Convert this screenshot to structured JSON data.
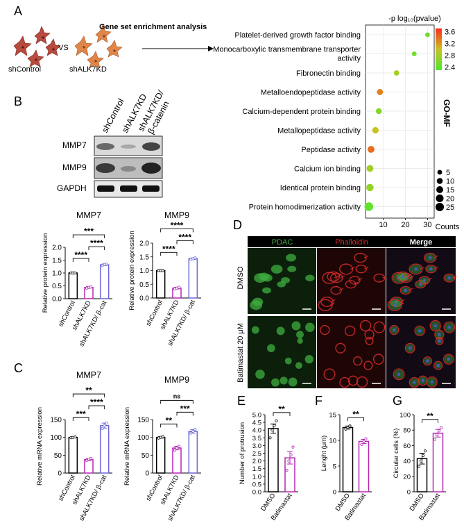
{
  "panels": {
    "a": "A",
    "b": "B",
    "c": "C",
    "d": "D",
    "e": "E",
    "f": "F",
    "g": "G"
  },
  "panel_a": {
    "left_label": "shControl",
    "vs": "VS",
    "right_label": "shALK7KD",
    "analysis_title": "Gene set enrichment analysis"
  },
  "western": {
    "lanes": [
      "shControl",
      "shALK7KD",
      "shALK7KD/",
      "β-catenin"
    ],
    "proteins": [
      "MMP7",
      "MMP9",
      "GAPDH"
    ]
  },
  "microscopy": {
    "channels": [
      "PDAC",
      "Phalloidin",
      "Merge"
    ],
    "rows": [
      "DMSO",
      "Batimastat 20 μM"
    ],
    "colors": {
      "pdac": "#3fae3f",
      "phalloidin": "#d22a2a",
      "pdac_bg": "#0b1f0b",
      "phalloidin_bg": "#1f0606",
      "merge_bg": "#120a14"
    }
  },
  "colors": {
    "control": "#000000",
    "alk7kd": "#b526b5",
    "rescue": "#6b67d8",
    "batimastat": "#b526b5"
  },
  "chart_data": [
    {
      "id": "go_mf",
      "type": "scatter",
      "title": "-p log₁₀(pvalue)",
      "side_label": "GO-MF",
      "xlabel": "Counts",
      "xticks": [
        10,
        20,
        30
      ],
      "xlim": [
        2,
        33
      ],
      "categories": [
        "Platelet-derived growth factor binding",
        "Monocarboxylic transmembrane transporter activity",
        "Fibronectin binding",
        "Metalloendopeptidase activity",
        "Calcium-dependent protein binding",
        "Metallopeptidase activity",
        "Peptidase activity",
        "Calcium ion binding",
        "Identical protein binding",
        "Protein homodimerization activity"
      ],
      "label_lines": [
        [
          "Platelet-derived growth factor binding"
        ],
        [
          "Monocarboxylic transmembrane transporter",
          "activity"
        ],
        [
          "Fibronectin binding"
        ],
        [
          "Metalloendopeptidase activity"
        ],
        [
          "Calcium-dependent protein binding"
        ],
        [
          "Metallopeptidase activity"
        ],
        [
          "Peptidase activity"
        ],
        [
          "Calcium ion binding"
        ],
        [
          "Identical protein binding"
        ],
        [
          "Protein homodimerization activity"
        ]
      ],
      "points": [
        {
          "count": 30,
          "pvalue": 2.5,
          "size": 4
        },
        {
          "count": 24,
          "pvalue": 2.5,
          "size": 4
        },
        {
          "count": 16,
          "pvalue": 2.8,
          "size": 6
        },
        {
          "count": 8.5,
          "pvalue": 3.3,
          "size": 9
        },
        {
          "count": 8,
          "pvalue": 2.6,
          "size": 8
        },
        {
          "count": 6.5,
          "pvalue": 3.0,
          "size": 10
        },
        {
          "count": 4.5,
          "pvalue": 3.4,
          "size": 12
        },
        {
          "count": 4,
          "pvalue": 2.8,
          "size": 12
        },
        {
          "count": 4,
          "pvalue": 2.7,
          "size": 14
        },
        {
          "count": 3.5,
          "pvalue": 2.4,
          "size": 22
        }
      ],
      "colorbar": {
        "min": 2.3,
        "max": 3.7,
        "ticks": [
          3.6,
          3.2,
          2.8,
          2.4
        ],
        "low_color": "#4de82f",
        "high_color": "#ff2b1a"
      },
      "size_legend": [
        5,
        10,
        15,
        20,
        25
      ]
    },
    {
      "id": "b_mmp7",
      "type": "bar",
      "title": "MMP7",
      "ylabel": "Relative protein expression",
      "categories": [
        "shControl",
        "shALK7KD",
        "shALK7KD/ β-cat"
      ],
      "values": [
        1.0,
        0.44,
        1.32
      ],
      "errors": [
        0.01,
        0.03,
        0.03
      ],
      "points": [
        [
          1.0,
          1.0,
          1.0
        ],
        [
          0.41,
          0.44,
          0.46
        ],
        [
          1.29,
          1.33,
          1.35
        ]
      ],
      "ylim": [
        0,
        2.0
      ],
      "yticks": [
        0.0,
        0.5,
        1.0,
        1.5,
        2.0
      ],
      "ytick_labels": [
        "0.0",
        "0.5",
        "1.0",
        "1.5",
        "2.0"
      ],
      "brackets": [
        {
          "from": 0,
          "to": 1,
          "label": "****"
        },
        {
          "from": 1,
          "to": 2,
          "label": "****"
        },
        {
          "from": 0,
          "to": 2,
          "label": "***"
        }
      ]
    },
    {
      "id": "b_mmp9",
      "type": "bar",
      "title": "MMP9",
      "ylabel": "Relative protein expression",
      "categories": [
        "shControl",
        "shALK7KD",
        "shALK7KD/ β-cat"
      ],
      "values": [
        1.0,
        0.36,
        1.43
      ],
      "errors": [
        0.01,
        0.03,
        0.03
      ],
      "points": [
        [
          1.0,
          1.0,
          1.0
        ],
        [
          0.33,
          0.36,
          0.39
        ],
        [
          1.41,
          1.43,
          1.46
        ]
      ],
      "ylim": [
        0,
        2.0
      ],
      "yticks": [
        0.0,
        0.5,
        1.0,
        1.5,
        2.0
      ],
      "ytick_labels": [
        "0.0",
        "0.5",
        "1.0",
        "1.5",
        "2.0"
      ],
      "brackets": [
        {
          "from": 0,
          "to": 1,
          "label": "****"
        },
        {
          "from": 1,
          "to": 2,
          "label": "****"
        },
        {
          "from": 0,
          "to": 2,
          "label": "****"
        }
      ]
    },
    {
      "id": "c_mmp7",
      "type": "bar",
      "title": "MMP7",
      "ylabel": "Relative mRNA expression",
      "categories": [
        "shControl",
        "shALK7KD",
        "shALK7KD/ β-cat"
      ],
      "values": [
        100,
        38,
        133
      ],
      "errors": [
        1.5,
        3,
        7
      ],
      "points": [
        [
          99,
          100,
          101
        ],
        [
          35,
          39,
          41
        ],
        [
          125,
          133,
          140
        ]
      ],
      "ylim": [
        0,
        150
      ],
      "yticks": [
        0,
        50,
        100,
        150
      ],
      "ytick_labels": [
        "0",
        "50",
        "100",
        "150"
      ],
      "brackets": [
        {
          "from": 0,
          "to": 1,
          "label": "***"
        },
        {
          "from": 1,
          "to": 2,
          "label": "****"
        },
        {
          "from": 0,
          "to": 2,
          "label": "**"
        }
      ]
    },
    {
      "id": "c_mmp9",
      "type": "bar",
      "title": "MMP9",
      "ylabel": "Relative mRNA expression",
      "categories": [
        "shControl",
        "shALK7KD",
        "shALK7KD/ β-cat"
      ],
      "values": [
        100,
        70,
        117
      ],
      "errors": [
        2,
        5,
        5
      ],
      "points": [
        [
          98,
          100,
          102
        ],
        [
          64,
          70,
          75
        ],
        [
          112,
          117,
          122
        ]
      ],
      "ylim": [
        0,
        150
      ],
      "yticks": [
        0,
        50,
        100,
        150
      ],
      "ytick_labels": [
        "0",
        "50",
        "100",
        "150"
      ],
      "brackets": [
        {
          "from": 0,
          "to": 1,
          "label": "**"
        },
        {
          "from": 1,
          "to": 2,
          "label": "***"
        },
        {
          "from": 0,
          "to": 2,
          "label": "ns"
        }
      ]
    },
    {
      "id": "e_protrusion",
      "type": "bar",
      "ylabel": "Number of protrusion",
      "categories": [
        "DMSO",
        "Batimastat"
      ],
      "values": [
        4.1,
        2.2
      ],
      "errors": [
        0.3,
        0.4
      ],
      "points": [
        [
          3.5,
          4.0,
          4.3,
          4.6
        ],
        [
          1.4,
          2.0,
          2.4,
          2.9
        ]
      ],
      "ylim": [
        0,
        5.0
      ],
      "yticks": [
        0.0,
        0.5,
        1.0,
        1.5,
        2.0,
        2.5,
        3.0,
        3.5,
        4.0,
        4.5,
        5.0
      ],
      "ytick_labels": [
        "0.0",
        "0.5",
        "1.0",
        "1.5",
        "2.0",
        "2.5",
        "3.0",
        "3.5",
        "4.0",
        "4.5",
        "5.0"
      ],
      "brackets": [
        {
          "from": 0,
          "to": 1,
          "label": "**"
        }
      ]
    },
    {
      "id": "f_length",
      "type": "bar",
      "ylabel": "Lenght (μm)",
      "categories": [
        "DMSO",
        "Batimastat"
      ],
      "values": [
        12.5,
        9.8
      ],
      "errors": [
        0.3,
        0.4
      ],
      "points": [
        [
          12.2,
          12.5,
          12.8
        ],
        [
          9.2,
          9.8,
          10.3
        ]
      ],
      "ylim": [
        0,
        15
      ],
      "yticks": [
        0,
        5,
        10,
        15
      ],
      "ytick_labels": [
        "0",
        "5",
        "10",
        "15"
      ],
      "brackets": [
        {
          "from": 0,
          "to": 1,
          "label": "**"
        }
      ]
    },
    {
      "id": "g_circular",
      "type": "bar",
      "ylabel": "Circular cells (%)",
      "categories": [
        "DMSO",
        "Batimastat"
      ],
      "values": [
        43,
        76
      ],
      "errors": [
        7,
        5
      ],
      "points": [
        [
          33,
          40,
          47,
          53
        ],
        [
          68,
          74,
          79,
          83
        ]
      ],
      "ylim": [
        0,
        100
      ],
      "yticks": [
        0,
        20,
        40,
        60,
        80,
        100
      ],
      "ytick_labels": [
        "0",
        "20",
        "40",
        "60",
        "80",
        "100"
      ],
      "brackets": [
        {
          "from": 0,
          "to": 1,
          "label": "**"
        }
      ]
    }
  ]
}
